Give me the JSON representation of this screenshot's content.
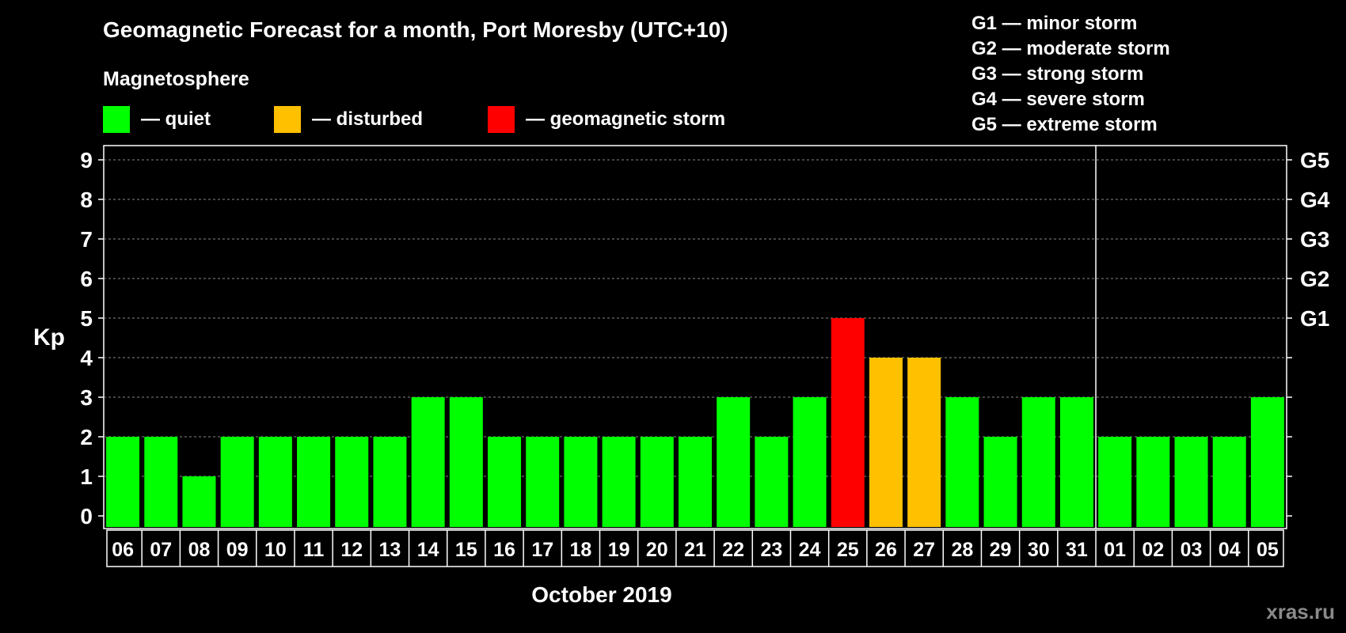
{
  "title": "Geomagnetic Forecast for a month, Port Moresby (UTC+10)",
  "magnetosphere_title": "Magnetosphere",
  "legend": [
    {
      "label": "— quiet",
      "color": "#00ff00"
    },
    {
      "label": "— disturbed",
      "color": "#ffc000"
    },
    {
      "label": "— geomagnetic storm",
      "color": "#ff0000"
    }
  ],
  "storm_scale": [
    "G1 — minor storm",
    "G2 — moderate storm",
    "G3 — strong storm",
    "G4 — severe storm",
    "G5 — extreme storm"
  ],
  "watermark": "xras.ru",
  "chart_data": {
    "type": "bar",
    "ylabel": "Kp",
    "xlabel": "October 2019",
    "ylim": [
      0,
      9
    ],
    "yticks": [
      0,
      1,
      2,
      3,
      4,
      5,
      6,
      7,
      8,
      9
    ],
    "right_axis_labels": [
      {
        "kp": 5,
        "label": "G1"
      },
      {
        "kp": 6,
        "label": "G2"
      },
      {
        "kp": 7,
        "label": "G3"
      },
      {
        "kp": 8,
        "label": "G4"
      },
      {
        "kp": 9,
        "label": "G5"
      }
    ],
    "categories": [
      "06",
      "07",
      "08",
      "09",
      "10",
      "11",
      "12",
      "13",
      "14",
      "15",
      "16",
      "17",
      "18",
      "19",
      "20",
      "21",
      "22",
      "23",
      "24",
      "25",
      "26",
      "27",
      "28",
      "29",
      "30",
      "31",
      "01",
      "02",
      "03",
      "04",
      "05"
    ],
    "values": [
      2,
      2,
      1,
      2,
      2,
      2,
      2,
      2,
      3,
      3,
      2,
      2,
      2,
      2,
      2,
      2,
      3,
      2,
      3,
      5,
      4,
      4,
      3,
      2,
      3,
      3,
      2,
      2,
      2,
      2,
      3
    ],
    "month_boundary_after": "31",
    "color_rules": {
      "quiet": "#00ff00",
      "disturbed": "#ffc000",
      "storm": "#ff0000"
    },
    "grid": true
  }
}
